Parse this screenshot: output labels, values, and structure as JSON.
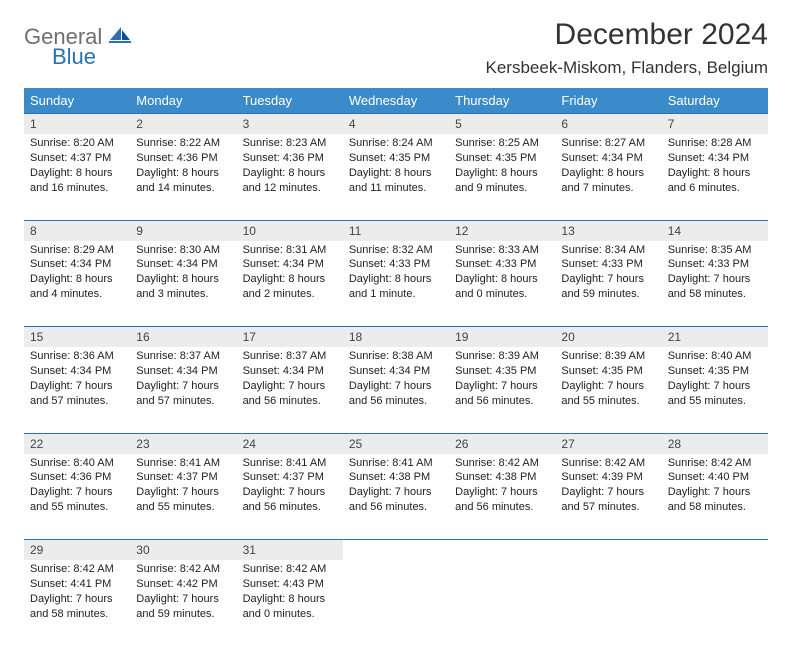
{
  "logo": {
    "general": "General",
    "blue": "Blue"
  },
  "header": {
    "title": "December 2024",
    "location": "Kersbeek-Miskom, Flanders, Belgium"
  },
  "colors": {
    "header_bg": "#3b8bca",
    "header_text": "#ffffff",
    "row_divider": "#2a72b5",
    "daynum_bg": "#ececec",
    "logo_gray": "#6f6f6f",
    "logo_blue": "#2a72b5"
  },
  "weekdays": [
    "Sunday",
    "Monday",
    "Tuesday",
    "Wednesday",
    "Thursday",
    "Friday",
    "Saturday"
  ],
  "weeks": [
    [
      {
        "n": "1",
        "sr": "Sunrise: 8:20 AM",
        "ss": "Sunset: 4:37 PM",
        "d1": "Daylight: 8 hours",
        "d2": "and 16 minutes."
      },
      {
        "n": "2",
        "sr": "Sunrise: 8:22 AM",
        "ss": "Sunset: 4:36 PM",
        "d1": "Daylight: 8 hours",
        "d2": "and 14 minutes."
      },
      {
        "n": "3",
        "sr": "Sunrise: 8:23 AM",
        "ss": "Sunset: 4:36 PM",
        "d1": "Daylight: 8 hours",
        "d2": "and 12 minutes."
      },
      {
        "n": "4",
        "sr": "Sunrise: 8:24 AM",
        "ss": "Sunset: 4:35 PM",
        "d1": "Daylight: 8 hours",
        "d2": "and 11 minutes."
      },
      {
        "n": "5",
        "sr": "Sunrise: 8:25 AM",
        "ss": "Sunset: 4:35 PM",
        "d1": "Daylight: 8 hours",
        "d2": "and 9 minutes."
      },
      {
        "n": "6",
        "sr": "Sunrise: 8:27 AM",
        "ss": "Sunset: 4:34 PM",
        "d1": "Daylight: 8 hours",
        "d2": "and 7 minutes."
      },
      {
        "n": "7",
        "sr": "Sunrise: 8:28 AM",
        "ss": "Sunset: 4:34 PM",
        "d1": "Daylight: 8 hours",
        "d2": "and 6 minutes."
      }
    ],
    [
      {
        "n": "8",
        "sr": "Sunrise: 8:29 AM",
        "ss": "Sunset: 4:34 PM",
        "d1": "Daylight: 8 hours",
        "d2": "and 4 minutes."
      },
      {
        "n": "9",
        "sr": "Sunrise: 8:30 AM",
        "ss": "Sunset: 4:34 PM",
        "d1": "Daylight: 8 hours",
        "d2": "and 3 minutes."
      },
      {
        "n": "10",
        "sr": "Sunrise: 8:31 AM",
        "ss": "Sunset: 4:34 PM",
        "d1": "Daylight: 8 hours",
        "d2": "and 2 minutes."
      },
      {
        "n": "11",
        "sr": "Sunrise: 8:32 AM",
        "ss": "Sunset: 4:33 PM",
        "d1": "Daylight: 8 hours",
        "d2": "and 1 minute."
      },
      {
        "n": "12",
        "sr": "Sunrise: 8:33 AM",
        "ss": "Sunset: 4:33 PM",
        "d1": "Daylight: 8 hours",
        "d2": "and 0 minutes."
      },
      {
        "n": "13",
        "sr": "Sunrise: 8:34 AM",
        "ss": "Sunset: 4:33 PM",
        "d1": "Daylight: 7 hours",
        "d2": "and 59 minutes."
      },
      {
        "n": "14",
        "sr": "Sunrise: 8:35 AM",
        "ss": "Sunset: 4:33 PM",
        "d1": "Daylight: 7 hours",
        "d2": "and 58 minutes."
      }
    ],
    [
      {
        "n": "15",
        "sr": "Sunrise: 8:36 AM",
        "ss": "Sunset: 4:34 PM",
        "d1": "Daylight: 7 hours",
        "d2": "and 57 minutes."
      },
      {
        "n": "16",
        "sr": "Sunrise: 8:37 AM",
        "ss": "Sunset: 4:34 PM",
        "d1": "Daylight: 7 hours",
        "d2": "and 57 minutes."
      },
      {
        "n": "17",
        "sr": "Sunrise: 8:37 AM",
        "ss": "Sunset: 4:34 PM",
        "d1": "Daylight: 7 hours",
        "d2": "and 56 minutes."
      },
      {
        "n": "18",
        "sr": "Sunrise: 8:38 AM",
        "ss": "Sunset: 4:34 PM",
        "d1": "Daylight: 7 hours",
        "d2": "and 56 minutes."
      },
      {
        "n": "19",
        "sr": "Sunrise: 8:39 AM",
        "ss": "Sunset: 4:35 PM",
        "d1": "Daylight: 7 hours",
        "d2": "and 56 minutes."
      },
      {
        "n": "20",
        "sr": "Sunrise: 8:39 AM",
        "ss": "Sunset: 4:35 PM",
        "d1": "Daylight: 7 hours",
        "d2": "and 55 minutes."
      },
      {
        "n": "21",
        "sr": "Sunrise: 8:40 AM",
        "ss": "Sunset: 4:35 PM",
        "d1": "Daylight: 7 hours",
        "d2": "and 55 minutes."
      }
    ],
    [
      {
        "n": "22",
        "sr": "Sunrise: 8:40 AM",
        "ss": "Sunset: 4:36 PM",
        "d1": "Daylight: 7 hours",
        "d2": "and 55 minutes."
      },
      {
        "n": "23",
        "sr": "Sunrise: 8:41 AM",
        "ss": "Sunset: 4:37 PM",
        "d1": "Daylight: 7 hours",
        "d2": "and 55 minutes."
      },
      {
        "n": "24",
        "sr": "Sunrise: 8:41 AM",
        "ss": "Sunset: 4:37 PM",
        "d1": "Daylight: 7 hours",
        "d2": "and 56 minutes."
      },
      {
        "n": "25",
        "sr": "Sunrise: 8:41 AM",
        "ss": "Sunset: 4:38 PM",
        "d1": "Daylight: 7 hours",
        "d2": "and 56 minutes."
      },
      {
        "n": "26",
        "sr": "Sunrise: 8:42 AM",
        "ss": "Sunset: 4:38 PM",
        "d1": "Daylight: 7 hours",
        "d2": "and 56 minutes."
      },
      {
        "n": "27",
        "sr": "Sunrise: 8:42 AM",
        "ss": "Sunset: 4:39 PM",
        "d1": "Daylight: 7 hours",
        "d2": "and 57 minutes."
      },
      {
        "n": "28",
        "sr": "Sunrise: 8:42 AM",
        "ss": "Sunset: 4:40 PM",
        "d1": "Daylight: 7 hours",
        "d2": "and 58 minutes."
      }
    ],
    [
      {
        "n": "29",
        "sr": "Sunrise: 8:42 AM",
        "ss": "Sunset: 4:41 PM",
        "d1": "Daylight: 7 hours",
        "d2": "and 58 minutes."
      },
      {
        "n": "30",
        "sr": "Sunrise: 8:42 AM",
        "ss": "Sunset: 4:42 PM",
        "d1": "Daylight: 7 hours",
        "d2": "and 59 minutes."
      },
      {
        "n": "31",
        "sr": "Sunrise: 8:42 AM",
        "ss": "Sunset: 4:43 PM",
        "d1": "Daylight: 8 hours",
        "d2": "and 0 minutes."
      },
      null,
      null,
      null,
      null
    ]
  ]
}
